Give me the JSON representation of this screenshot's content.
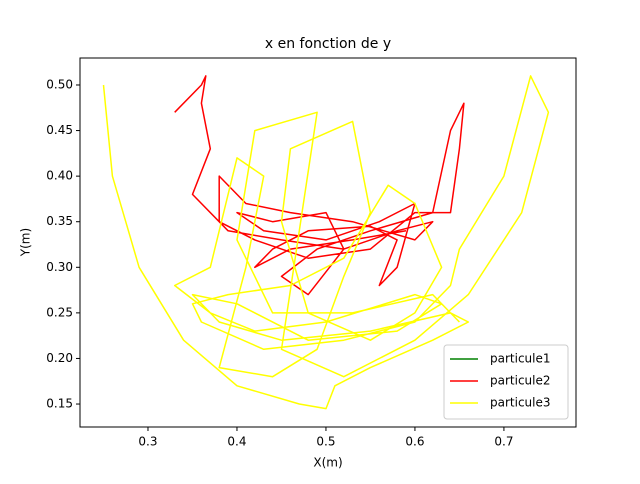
{
  "chart_data": {
    "type": "line",
    "title": "x en fonction de y",
    "x_label": "X(m)",
    "y_label": "Y(m)",
    "xlim": [
      0.2236,
      0.781
    ],
    "ylim": [
      0.1248,
      0.5296
    ],
    "xticks": [
      0.3,
      0.4,
      0.5,
      0.6,
      0.7
    ],
    "yticks": [
      {
        "value": 0.15,
        "label": "0.15"
      },
      {
        "value": 0.2,
        "label": "0.20"
      },
      {
        "value": 0.25,
        "label": "0.25"
      },
      {
        "value": 0.3,
        "label": "0.30"
      },
      {
        "value": 0.35,
        "label": "0.35"
      },
      {
        "value": 0.4,
        "label": "0.40"
      },
      {
        "value": 0.45,
        "label": "0.45"
      },
      {
        "value": 0.5,
        "label": "0.50"
      }
    ],
    "grid": false,
    "legend_position": "lower right",
    "series": [
      {
        "name": "particule1",
        "color": "#008000",
        "x": [],
        "values": []
      },
      {
        "name": "particule2",
        "color": "#ff0000",
        "x": [
          0.33,
          0.36,
          0.365,
          0.36,
          0.37,
          0.35,
          0.39,
          0.45,
          0.52,
          0.58,
          0.62,
          0.6,
          0.53,
          0.46,
          0.41,
          0.38,
          0.38,
          0.42,
          0.48,
          0.55,
          0.6,
          0.64,
          0.65,
          0.655,
          0.64,
          0.62,
          0.55,
          0.49,
          0.45,
          0.48,
          0.52,
          0.5,
          0.44,
          0.4,
          0.43,
          0.5,
          0.56,
          0.6,
          0.58,
          0.56,
          0.58,
          0.55,
          0.48,
          0.44,
          0.42,
          0.46,
          0.53,
          0.59
        ],
        "values": [
          0.47,
          0.5,
          0.51,
          0.48,
          0.43,
          0.38,
          0.34,
          0.33,
          0.32,
          0.34,
          0.35,
          0.33,
          0.35,
          0.36,
          0.37,
          0.4,
          0.35,
          0.33,
          0.31,
          0.32,
          0.36,
          0.36,
          0.43,
          0.48,
          0.45,
          0.36,
          0.34,
          0.32,
          0.29,
          0.27,
          0.32,
          0.36,
          0.35,
          0.36,
          0.34,
          0.33,
          0.35,
          0.37,
          0.3,
          0.28,
          0.33,
          0.345,
          0.34,
          0.32,
          0.3,
          0.32,
          0.33,
          0.34
        ]
      },
      {
        "name": "particule3",
        "color": "#ffff00",
        "x": [
          0.25,
          0.26,
          0.29,
          0.34,
          0.4,
          0.47,
          0.5,
          0.51,
          0.55,
          0.62,
          0.66,
          0.64,
          0.55,
          0.45,
          0.38,
          0.35,
          0.4,
          0.48,
          0.58,
          0.63,
          0.6,
          0.5,
          0.42,
          0.37,
          0.33,
          0.37,
          0.4,
          0.43,
          0.41,
          0.38,
          0.44,
          0.49,
          0.52,
          0.55,
          0.53,
          0.46,
          0.45,
          0.48,
          0.55,
          0.6,
          0.63,
          0.6,
          0.57,
          0.52,
          0.46,
          0.39,
          0.35,
          0.36,
          0.43,
          0.52,
          0.6,
          0.64,
          0.65,
          0.7,
          0.73,
          0.75,
          0.72,
          0.66,
          0.6,
          0.52,
          0.45,
          0.49,
          0.42,
          0.4,
          0.44,
          0.53,
          0.62,
          0.65
        ],
        "values": [
          0.5,
          0.4,
          0.3,
          0.22,
          0.17,
          0.15,
          0.145,
          0.17,
          0.19,
          0.22,
          0.24,
          0.25,
          0.23,
          0.22,
          0.24,
          0.27,
          0.26,
          0.22,
          0.23,
          0.26,
          0.27,
          0.24,
          0.23,
          0.25,
          0.28,
          0.3,
          0.42,
          0.4,
          0.3,
          0.19,
          0.18,
          0.21,
          0.29,
          0.36,
          0.46,
          0.43,
          0.35,
          0.25,
          0.22,
          0.25,
          0.3,
          0.37,
          0.39,
          0.31,
          0.28,
          0.27,
          0.26,
          0.24,
          0.21,
          0.22,
          0.24,
          0.28,
          0.32,
          0.4,
          0.51,
          0.47,
          0.36,
          0.27,
          0.22,
          0.18,
          0.21,
          0.47,
          0.45,
          0.33,
          0.25,
          0.25,
          0.27,
          0.24
        ]
      }
    ]
  }
}
